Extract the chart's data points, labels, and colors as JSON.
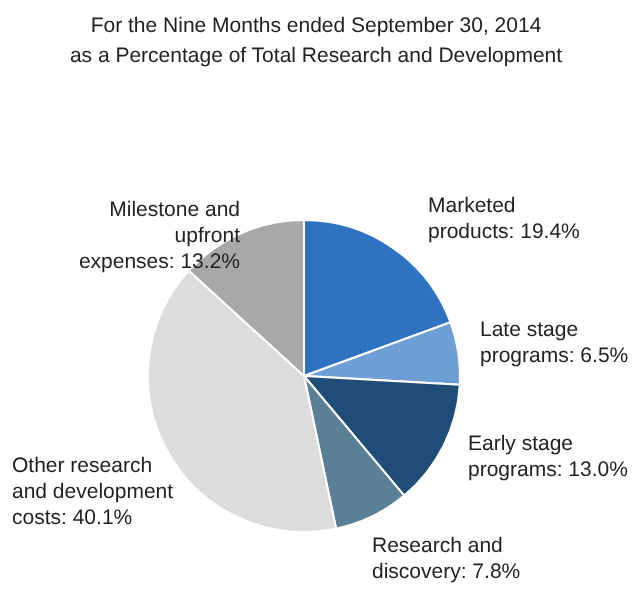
{
  "chart_data": {
    "type": "pie",
    "title": "For the Nine Months ended September 30, 2014",
    "subtitle": "as a Percentage of Total Research and Development",
    "categories": [
      "Marketed products",
      "Late stage programs",
      "Early stage programs",
      "Research and discovery",
      "Other research and development costs",
      "Milestone and upfront expenses"
    ],
    "values": [
      19.4,
      6.5,
      13.0,
      7.8,
      40.1,
      13.2
    ],
    "value_labels": [
      "19.4%",
      "6.5%",
      "13.0%",
      "7.8%",
      "40.1%",
      "13.2%"
    ],
    "colors": [
      "#2e73c2",
      "#6e9ed6",
      "#1f4d78",
      "#5b7f95",
      "#dcdcdc",
      "#a8a8a8"
    ]
  }
}
